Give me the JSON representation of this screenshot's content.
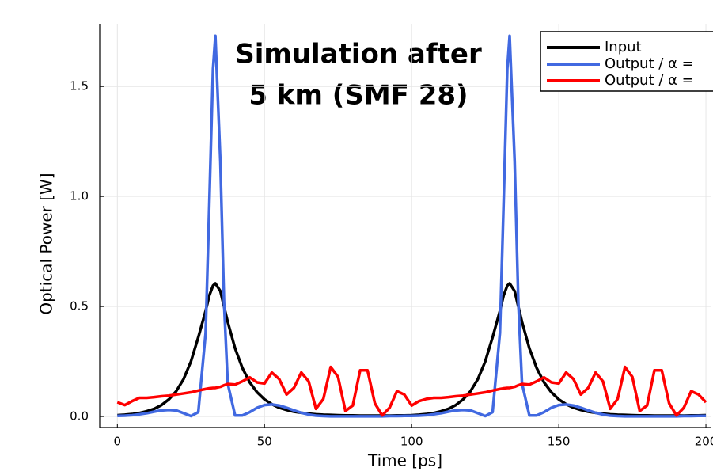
{
  "chart_data": {
    "type": "line",
    "title": [
      "Simulation after",
      "5 km (SMF 28)"
    ],
    "x_label": "Time [ps]",
    "y_label": "Optical Power [W]",
    "xlim": [
      -6,
      201.6
    ],
    "ylim": [
      -0.05,
      1.785
    ],
    "xticks": [
      0,
      50,
      100,
      150,
      200
    ],
    "yticks": [
      {
        "value": 0,
        "label": "0.0"
      },
      {
        "value": 0.5,
        "label": "0.5"
      },
      {
        "value": 1,
        "label": "1.0"
      },
      {
        "value": 1.5,
        "label": "1.5"
      }
    ],
    "grid": true,
    "legend": "top right",
    "x": [
      0,
      2.5,
      5,
      7.5,
      10,
      12.5,
      15,
      17.5,
      20,
      22.5,
      25,
      27.5,
      30,
      31.25,
      32.5,
      33.3,
      35,
      36.25,
      37.5,
      40,
      42.5,
      45,
      47.5,
      50,
      52.5,
      55,
      57.5,
      60,
      62.5,
      65,
      67.5,
      70,
      72.5,
      75,
      77.5,
      80,
      82.5,
      85,
      87.5,
      90,
      92.5,
      95,
      97.5,
      100,
      102.5,
      105,
      107.5,
      110,
      112.5,
      115,
      117.5,
      120,
      122.5,
      125,
      127.5,
      130,
      131.25,
      132.5,
      133.3,
      135,
      136.25,
      137.5,
      140,
      142.5,
      145,
      147.5,
      150,
      152.5,
      155,
      157.5,
      160,
      162.5,
      165,
      167.5,
      170,
      172.5,
      175,
      177.5,
      180,
      182.5,
      185,
      187.5,
      190,
      192.5,
      195,
      197.5,
      200
    ],
    "series": [
      {
        "name": "Input",
        "color": "#000000",
        "values": [
          0.006,
          0.008,
          0.011,
          0.016,
          0.024,
          0.035,
          0.052,
          0.078,
          0.115,
          0.17,
          0.25,
          0.36,
          0.48,
          0.55,
          0.595,
          0.605,
          0.57,
          0.5,
          0.43,
          0.31,
          0.22,
          0.155,
          0.11,
          0.078,
          0.056,
          0.04,
          0.03,
          0.022,
          0.017,
          0.013,
          0.01,
          0.008,
          0.007,
          0.006,
          0.005,
          0.005,
          0.004,
          0.004,
          0.004,
          0.004,
          0.004,
          0.005,
          0.005,
          0.006,
          0.008,
          0.011,
          0.016,
          0.024,
          0.035,
          0.052,
          0.078,
          0.115,
          0.17,
          0.25,
          0.36,
          0.48,
          0.55,
          0.595,
          0.605,
          0.57,
          0.5,
          0.43,
          0.31,
          0.22,
          0.155,
          0.11,
          0.078,
          0.056,
          0.04,
          0.03,
          0.022,
          0.017,
          0.013,
          0.01,
          0.008,
          0.007,
          0.006,
          0.005,
          0.005,
          0.004,
          0.004,
          0.004,
          0.004,
          0.004,
          0.005,
          0.005,
          0.006
        ]
      },
      {
        "name": "Output / α =",
        "color": "#4169e1",
        "values": [
          0.003,
          0.004,
          0.006,
          0.01,
          0.015,
          0.022,
          0.028,
          0.03,
          0.028,
          0.015,
          0.002,
          0.02,
          0.38,
          0.97,
          1.58,
          1.73,
          1.16,
          0.52,
          0.15,
          0.005,
          0.005,
          0.02,
          0.04,
          0.052,
          0.055,
          0.05,
          0.04,
          0.028,
          0.017,
          0.009,
          0.004,
          0.002,
          0.001,
          0.001,
          0.001,
          0.001,
          0.001,
          0.001,
          0.001,
          0.001,
          0.002,
          0.002,
          0.003,
          0.003,
          0.004,
          0.006,
          0.01,
          0.015,
          0.022,
          0.028,
          0.03,
          0.028,
          0.015,
          0.002,
          0.02,
          0.38,
          0.97,
          1.58,
          1.73,
          1.16,
          0.52,
          0.15,
          0.005,
          0.005,
          0.02,
          0.04,
          0.052,
          0.055,
          0.05,
          0.04,
          0.028,
          0.017,
          0.009,
          0.004,
          0.002,
          0.001,
          0.001,
          0.001,
          0.001,
          0.001,
          0.001,
          0.001,
          0.001,
          0.002,
          0.002,
          0.003,
          0.003
        ]
      },
      {
        "name": "Output / α =",
        "color": "#ff0000",
        "values": [
          0.065,
          0.052,
          0.07,
          0.085,
          0.085,
          0.088,
          0.092,
          0.095,
          0.1,
          0.105,
          0.11,
          0.118,
          0.125,
          0.128,
          0.13,
          0.13,
          0.135,
          0.142,
          0.148,
          0.145,
          0.16,
          0.178,
          0.155,
          0.15,
          0.2,
          0.17,
          0.1,
          0.13,
          0.2,
          0.16,
          0.035,
          0.08,
          0.225,
          0.18,
          0.025,
          0.05,
          0.21,
          0.21,
          0.06,
          0.005,
          0.04,
          0.115,
          0.1,
          0.05,
          0.07,
          0.08,
          0.085,
          0.085,
          0.088,
          0.092,
          0.095,
          0.1,
          0.105,
          0.11,
          0.118,
          0.125,
          0.128,
          0.13,
          0.13,
          0.135,
          0.142,
          0.148,
          0.145,
          0.16,
          0.178,
          0.155,
          0.15,
          0.2,
          0.17,
          0.1,
          0.13,
          0.2,
          0.16,
          0.035,
          0.08,
          0.225,
          0.18,
          0.025,
          0.05,
          0.21,
          0.21,
          0.06,
          0.005,
          0.04,
          0.115,
          0.1,
          0.065
        ]
      }
    ]
  }
}
